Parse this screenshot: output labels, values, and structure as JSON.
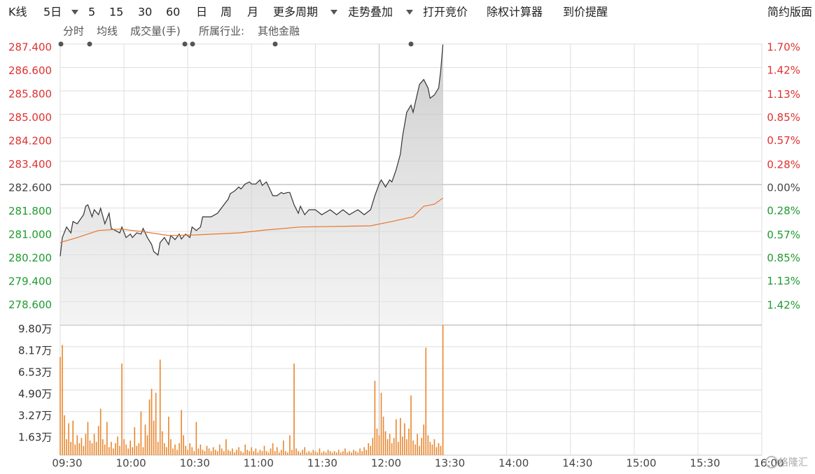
{
  "toolbar": {
    "items": [
      "K线",
      "5日",
      "5",
      "15",
      "30",
      "60",
      "日",
      "周",
      "月",
      "更多周期",
      "走势叠加",
      "打开竞价",
      "除权计算器",
      "到价提醒"
    ],
    "right": "简约版面"
  },
  "info": {
    "industry_label": "所属行业:",
    "industry": "其他金融"
  },
  "watermark": "格隆汇",
  "chart_data": [
    {
      "type": "line",
      "series": [
        {
          "name": "分时",
          "color": "#333333",
          "x": [
            0,
            1,
            3,
            5,
            6,
            8,
            11,
            12,
            13,
            15,
            16,
            18,
            19,
            21,
            23,
            24,
            26,
            28,
            29,
            31,
            33,
            34,
            36,
            38,
            39,
            41,
            43,
            44,
            46,
            47,
            49,
            51,
            52,
            54,
            56,
            57,
            59,
            61,
            62,
            64,
            66,
            67,
            71,
            74,
            77,
            79,
            80,
            82,
            84,
            85,
            87,
            89,
            90,
            92,
            94,
            95,
            97,
            99,
            100,
            102,
            104,
            105,
            107,
            108,
            110,
            112,
            113,
            115,
            117,
            120,
            123,
            127,
            130,
            133,
            136,
            140,
            143,
            146,
            148,
            150,
            151,
            153,
            155,
            156,
            158,
            160,
            161,
            163,
            165,
            166,
            168,
            169,
            171,
            173,
            174,
            176,
            178,
            179,
            180
          ],
          "values": [
            280.15,
            280.79,
            281.15,
            280.95,
            281.34,
            281.26,
            281.57,
            281.86,
            281.91,
            281.5,
            281.74,
            281.57,
            281.79,
            281.26,
            281.62,
            281.1,
            281.03,
            280.95,
            281.15,
            280.79,
            280.91,
            280.79,
            280.95,
            280.91,
            281.1,
            280.79,
            280.55,
            280.31,
            280.19,
            280.62,
            280.79,
            280.55,
            280.86,
            280.72,
            280.91,
            280.74,
            280.91,
            280.79,
            281.15,
            281.03,
            281.15,
            281.5,
            281.5,
            281.62,
            281.91,
            282.1,
            282.29,
            282.38,
            282.52,
            282.45,
            282.62,
            282.69,
            282.62,
            282.62,
            282.76,
            282.57,
            282.69,
            282.38,
            282.22,
            282.22,
            282.33,
            282.29,
            282.33,
            282.33,
            281.91,
            281.62,
            281.86,
            281.57,
            281.74,
            281.74,
            281.57,
            281.74,
            281.57,
            281.74,
            281.57,
            281.74,
            281.57,
            281.74,
            282.22,
            282.62,
            282.76,
            282.52,
            282.76,
            282.69,
            283.1,
            283.64,
            284.24,
            285.07,
            285.31,
            285.07,
            285.71,
            286.02,
            286.19,
            285.9,
            285.55,
            285.66,
            285.9,
            286.5,
            287.38
          ]
        },
        {
          "name": "均线",
          "color": "#e8762d",
          "x": [
            0,
            8,
            18,
            28,
            38,
            51,
            64,
            84,
            97,
            113,
            146,
            156,
            166,
            171,
            176,
            180
          ],
          "values": [
            280.62,
            280.79,
            281.03,
            281.08,
            281.0,
            280.86,
            280.88,
            280.95,
            281.05,
            281.15,
            281.19,
            281.34,
            281.5,
            281.86,
            281.93,
            282.14
          ]
        }
      ],
      "xlim": [
        0,
        330
      ],
      "xticks": [
        {
          "value": 0,
          "label": "09:30"
        },
        {
          "value": 30,
          "label": "10:00"
        },
        {
          "value": 60,
          "label": "10:30"
        },
        {
          "value": 90,
          "label": "11:00"
        },
        {
          "value": 120,
          "label": "11:30"
        },
        {
          "value": 150,
          "label": "12:00"
        },
        {
          "value": 180,
          "label": "13:30"
        },
        {
          "value": 210,
          "label": "14:00"
        },
        {
          "value": 240,
          "label": "14:30"
        },
        {
          "value": 270,
          "label": "15:00"
        },
        {
          "value": 300,
          "label": "15:30"
        },
        {
          "value": 330,
          "label": "16:00"
        }
      ],
      "ylim": [
        277.8,
        287.4
      ],
      "yticks": [
        {
          "value": 287.4,
          "label": "287.400"
        },
        {
          "value": 286.6,
          "label": "286.600"
        },
        {
          "value": 285.8,
          "label": "285.800"
        },
        {
          "value": 285.0,
          "label": "285.000"
        },
        {
          "value": 284.2,
          "label": "284.200"
        },
        {
          "value": 283.4,
          "label": "283.400"
        },
        {
          "value": 282.6,
          "label": "282.600"
        },
        {
          "value": 281.8,
          "label": "281.800"
        },
        {
          "value": 281.0,
          "label": "281.000"
        },
        {
          "value": 280.2,
          "label": "280.200"
        },
        {
          "value": 279.4,
          "label": "279.400"
        },
        {
          "value": 278.6,
          "label": "278.600"
        }
      ],
      "y2lim": [
        -1.7,
        1.7
      ],
      "y2ticks": [
        {
          "value": 1.7,
          "label": "1.70%"
        },
        {
          "value": 1.42,
          "label": "1.42%"
        },
        {
          "value": 1.13,
          "label": "1.13%"
        },
        {
          "value": 0.85,
          "label": "0.85%"
        },
        {
          "value": 0.57,
          "label": "0.57%"
        },
        {
          "value": 0.28,
          "label": "0.28%"
        },
        {
          "value": 0,
          "label": "0.00%"
        },
        {
          "value": -0.28,
          "label": "0.28%"
        },
        {
          "value": -0.57,
          "label": "0.57%"
        },
        {
          "value": -0.85,
          "label": "0.85%"
        },
        {
          "value": -1.13,
          "label": "1.13%"
        },
        {
          "value": -1.42,
          "label": "1.42%"
        }
      ],
      "grid": true
    },
    {
      "type": "bar",
      "title": "成交量(手)",
      "color": "#e8862d",
      "xlim": [
        0,
        330
      ],
      "x": [
        0,
        1,
        2,
        3,
        4,
        5,
        6,
        7,
        8,
        9,
        10,
        11,
        12,
        13,
        14,
        15,
        16,
        17,
        18,
        19,
        20,
        21,
        22,
        23,
        24,
        25,
        26,
        27,
        28,
        29,
        30,
        31,
        32,
        33,
        34,
        35,
        36,
        37,
        38,
        39,
        40,
        41,
        42,
        43,
        44,
        45,
        46,
        47,
        48,
        49,
        50,
        51,
        52,
        53,
        54,
        55,
        56,
        57,
        58,
        59,
        60,
        61,
        62,
        63,
        64,
        65,
        66,
        67,
        68,
        69,
        70,
        71,
        72,
        73,
        74,
        75,
        76,
        77,
        78,
        79,
        80,
        81,
        82,
        83,
        84,
        85,
        86,
        87,
        88,
        89,
        90,
        91,
        92,
        93,
        94,
        95,
        96,
        97,
        98,
        99,
        100,
        101,
        102,
        103,
        104,
        105,
        106,
        107,
        108,
        109,
        110,
        111,
        112,
        113,
        114,
        115,
        116,
        117,
        118,
        119,
        120,
        121,
        122,
        123,
        124,
        125,
        126,
        127,
        128,
        129,
        130,
        131,
        132,
        133,
        134,
        135,
        136,
        137,
        138,
        139,
        140,
        141,
        142,
        143,
        144,
        145,
        146,
        147,
        148,
        149,
        150,
        151,
        152,
        153,
        154,
        155,
        156,
        157,
        158,
        159,
        160,
        161,
        162,
        163,
        164,
        165,
        166,
        167,
        168,
        169,
        170,
        171,
        172,
        173,
        174,
        175,
        176,
        177,
        178,
        179,
        180
      ],
      "values": [
        7.4,
        8.3,
        3.0,
        1.2,
        2.4,
        1.0,
        2.6,
        0.8,
        1.5,
        0.9,
        1.3,
        0.7,
        1.6,
        2.5,
        1.1,
        0.9,
        1.6,
        1.0,
        2.2,
        3.5,
        1.2,
        0.8,
        2.5,
        0.6,
        1.0,
        0.5,
        0.9,
        1.4,
        0.7,
        6.9,
        1.2,
        0.8,
        0.5,
        1.1,
        0.6,
        2.1,
        0.7,
        0.9,
        3.3,
        0.6,
        2.3,
        1.5,
        4.2,
        5.0,
        2.6,
        4.7,
        1.0,
        7.2,
        1.8,
        0.9,
        0.6,
        2.9,
        1.2,
        0.5,
        0.8,
        0.4,
        0.9,
        3.4,
        1.5,
        0.7,
        0.4,
        0.9,
        0.6,
        0.3,
        2.5,
        0.5,
        0.8,
        0.4,
        0.3,
        0.7,
        0.5,
        0.3,
        0.6,
        0.4,
        0.3,
        0.8,
        0.5,
        0.3,
        1.2,
        0.4,
        0.3,
        0.5,
        0.2,
        0.4,
        0.6,
        0.3,
        0.2,
        0.8,
        0.4,
        0.3,
        0.6,
        0.3,
        0.5,
        0.2,
        0.4,
        0.3,
        0.7,
        0.3,
        0.2,
        0.5,
        0.9,
        0.3,
        0.6,
        0.2,
        0.4,
        1.1,
        0.3,
        0.2,
        1.5,
        0.4,
        6.9,
        0.5,
        0.3,
        0.2,
        0.4,
        0.6,
        0.2,
        0.3,
        0.2,
        0.4,
        0.3,
        0.2,
        0.5,
        0.2,
        0.3,
        0.2,
        0.4,
        0.3,
        0.2,
        0.3,
        0.2,
        0.4,
        0.2,
        0.3,
        0.5,
        0.2,
        0.3,
        0.2,
        0.4,
        0.3,
        0.2,
        0.5,
        0.3,
        0.6,
        0.4,
        0.9,
        0.7,
        1.3,
        5.6,
        2.0,
        1.5,
        4.7,
        2.9,
        1.8,
        1.2,
        1.6,
        0.9,
        1.3,
        2.7,
        1.0,
        2.8,
        1.4,
        2.4,
        1.2,
        2.0,
        4.5,
        1.1,
        0.8,
        1.6,
        0.7,
        1.3,
        2.3,
        8.1,
        1.5,
        1.0,
        0.8,
        1.2,
        0.6,
        0.9,
        0.7,
        9.8
      ],
      "ylim": [
        0,
        9.8
      ],
      "yticks": [
        {
          "value": 1.63,
          "label": "1.63万"
        },
        {
          "value": 3.27,
          "label": "3.27万"
        },
        {
          "value": 4.9,
          "label": "4.90万"
        },
        {
          "value": 6.53,
          "label": "6.53万"
        },
        {
          "value": 8.17,
          "label": "8.17万"
        },
        {
          "value": 9.8,
          "label": "9.80万"
        }
      ]
    }
  ]
}
